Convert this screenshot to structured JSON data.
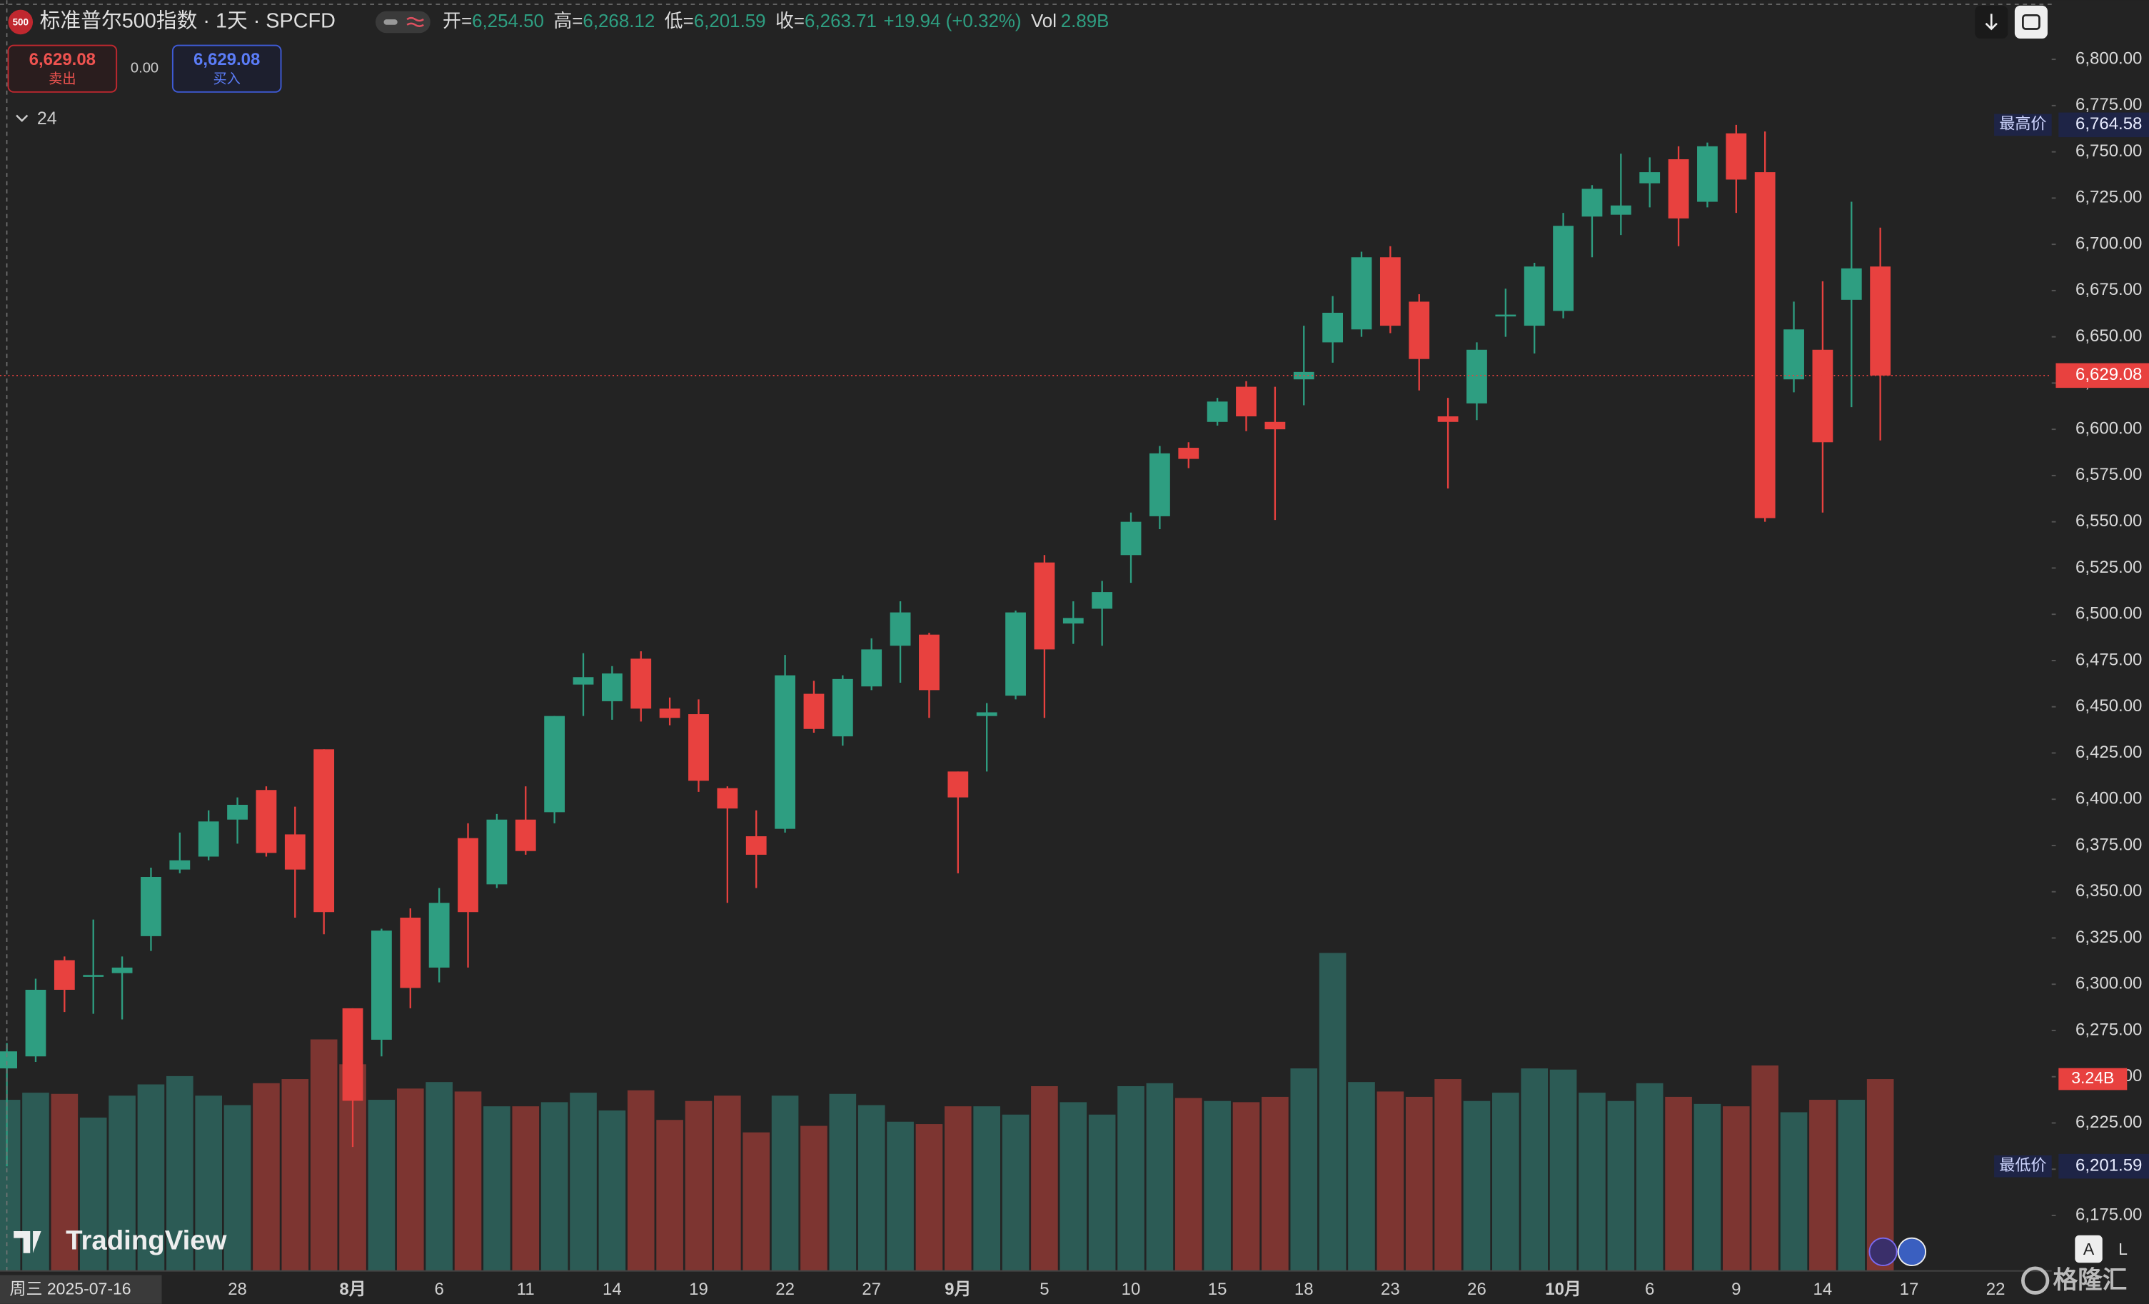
{
  "chart_data": {
    "type": "candlestick",
    "header": {
      "logo": "500",
      "title": "标准普尔500指数 · 1天 · SPCFD",
      "open_label": "开=",
      "open": "6,254.50",
      "high_label": "高=",
      "high": "6,268.12",
      "low_label": "低=",
      "low": "6,201.59",
      "close_label": "收=",
      "close": "6,263.71",
      "change": "+19.94 (+0.32%)",
      "vol_label": "Vol",
      "vol": "2.89B"
    },
    "trade": {
      "sell_price": "6,629.08",
      "sell_label": "卖出",
      "spread": "0.00",
      "buy_price": "6,629.08",
      "buy_label": "买入"
    },
    "indicator_toggle": "24",
    "categories": [
      null,
      null,
      null,
      null,
      null,
      null,
      null,
      null,
      "28",
      null,
      null,
      null,
      "8月",
      null,
      null,
      "6",
      null,
      null,
      "11",
      null,
      null,
      "14",
      null,
      null,
      "19",
      null,
      null,
      "22",
      null,
      null,
      "27",
      null,
      null,
      "9月",
      null,
      null,
      "5",
      null,
      null,
      "10",
      null,
      null,
      "15",
      null,
      null,
      "18",
      null,
      null,
      "23",
      null,
      null,
      "26",
      null,
      null,
      "10月",
      null,
      null,
      "6",
      null,
      null,
      "9",
      null,
      null,
      "14",
      null,
      null,
      "17",
      null,
      null,
      "22"
    ],
    "open": [
      6254.5,
      6261,
      6313,
      6304,
      6306,
      6326,
      6362,
      6369,
      6389,
      6405,
      6381,
      6427,
      6287,
      6270,
      6336,
      6309,
      6379,
      6354,
      6389,
      6393,
      6462,
      6453,
      6476,
      6449,
      6446,
      6406,
      6380,
      6384,
      6457,
      6434,
      6461,
      6483,
      6489,
      6415,
      6445,
      6456,
      6528,
      6495,
      6503,
      6532,
      6553,
      6590,
      6604,
      6623,
      6604,
      6627,
      6647,
      6654,
      6693,
      6669,
      6607,
      6614,
      6661,
      6656,
      6664,
      6715,
      6716,
      6733,
      6746,
      6723,
      6760,
      6739,
      6627,
      6643,
      6670,
      6688,
      null,
      null,
      null,
      null
    ],
    "high": [
      6268.12,
      6303,
      6315,
      6335,
      6315,
      6363,
      6382,
      6394,
      6401,
      6407,
      6396,
      6427,
      6287,
      6330,
      6341,
      6352,
      6387,
      6392,
      6407,
      6445,
      6479,
      6472,
      6480,
      6455,
      6454,
      6407,
      6394,
      6478,
      6464,
      6467,
      6487,
      6507,
      6490,
      6415,
      6452,
      6502,
      6532,
      6507,
      6518,
      6555,
      6591,
      6593,
      6617,
      6626,
      6623,
      6656,
      6672,
      6696,
      6699,
      6673,
      6617,
      6647,
      6676,
      6690,
      6717,
      6732,
      6749,
      6747,
      6753,
      6755,
      6764.58,
      6761,
      6669,
      6680,
      6723,
      6709,
      null,
      null,
      null,
      null
    ],
    "low": [
      6201.59,
      6258,
      6285,
      6284,
      6281,
      6318,
      6360,
      6367,
      6376,
      6369,
      6336,
      6327,
      6212,
      6261,
      6287,
      6301,
      6309,
      6352,
      6370,
      6387,
      6445,
      6443,
      6442,
      6440,
      6404,
      6344,
      6352,
      6382,
      6436,
      6429,
      6459,
      6463,
      6444,
      6360,
      6415,
      6454,
      6444,
      6484,
      6483,
      6517,
      6546,
      6579,
      6602,
      6599,
      6551,
      6613,
      6636,
      6650,
      6652,
      6621,
      6568,
      6605,
      6650,
      6641,
      6660,
      6693,
      6705,
      6720,
      6699,
      6720,
      6717,
      6550,
      6620,
      6555,
      6612,
      6594,
      null,
      null,
      null,
      null
    ],
    "close": [
      6263.71,
      6297,
      6297,
      6305,
      6309,
      6358,
      6367,
      6388,
      6397,
      6371,
      6362,
      6339,
      6237,
      6329,
      6298,
      6344,
      6339,
      6389,
      6372,
      6445,
      6466,
      6468,
      6449,
      6444,
      6410,
      6395,
      6370,
      6467,
      6438,
      6465,
      6481,
      6501,
      6459,
      6401,
      6447,
      6501,
      6481,
      6498,
      6512,
      6550,
      6587,
      6584,
      6615,
      6607,
      6600,
      6631,
      6663,
      6693,
      6656,
      6638,
      6604,
      6643,
      6662,
      6688,
      6710,
      6730,
      6721,
      6739,
      6714,
      6753,
      6735,
      6552,
      6654,
      6593,
      6687,
      6629.08,
      null,
      null,
      null,
      null
    ],
    "up_color": "#2e9e81",
    "down_color": "#e8413f",
    "volume": {
      "values": [
        2.89,
        3.01,
        2.99,
        2.59,
        2.96,
        3.15,
        3.29,
        2.96,
        2.8,
        3.17,
        3.24,
        3.91,
        3.49,
        2.89,
        3.08,
        3.19,
        3.03,
        2.78,
        2.78,
        2.85,
        3.01,
        2.71,
        3.05,
        2.55,
        2.87,
        2.96,
        2.34,
        2.96,
        2.45,
        2.99,
        2.8,
        2.52,
        2.48,
        2.78,
        2.78,
        2.64,
        3.12,
        2.85,
        2.64,
        3.12,
        3.17,
        2.92,
        2.87,
        2.85,
        2.94,
        3.42,
        5.37,
        3.19,
        3.03,
        2.94,
        3.24,
        2.87,
        3.01,
        3.42,
        3.4,
        3.01,
        2.87,
        3.17,
        2.94,
        2.82,
        2.78,
        3.47,
        2.68,
        2.89,
        2.89,
        3.24,
        null,
        null,
        null,
        null
      ],
      "ylim": [
        0,
        10
      ],
      "up_color": "#2c5b55",
      "down_color": "#7d3531",
      "last_label": {
        "value": 3.24,
        "label": "3.24B"
      }
    },
    "ylim": [
      6145,
      6832
    ],
    "yticks": [
      {
        "value": 6175,
        "label": "6,175.00"
      },
      {
        "value": 6200,
        "label": "6,200.00"
      },
      {
        "value": 6225,
        "label": "6,225.00"
      },
      {
        "value": 6250,
        "label": "6,250.00"
      },
      {
        "value": 6275,
        "label": "6,275.00"
      },
      {
        "value": 6300,
        "label": "6,300.00"
      },
      {
        "value": 6325,
        "label": "6,325.00"
      },
      {
        "value": 6350,
        "label": "6,350.00"
      },
      {
        "value": 6375,
        "label": "6,375.00"
      },
      {
        "value": 6400,
        "label": "6,400.00"
      },
      {
        "value": 6425,
        "label": "6,425.00"
      },
      {
        "value": 6450,
        "label": "6,450.00"
      },
      {
        "value": 6475,
        "label": "6,475.00"
      },
      {
        "value": 6500,
        "label": "6,500.00"
      },
      {
        "value": 6525,
        "label": "6,525.00"
      },
      {
        "value": 6550,
        "label": "6,550.00"
      },
      {
        "value": 6575,
        "label": "6,575.00"
      },
      {
        "value": 6600,
        "label": "6,600.00"
      },
      {
        "value": 6625,
        "label": "6,625.00"
      },
      {
        "value": 6650,
        "label": "6,650.00"
      },
      {
        "value": 6675,
        "label": "6,675.00"
      },
      {
        "value": 6700,
        "label": "6,700.00"
      },
      {
        "value": 6725,
        "label": "6,725.00"
      },
      {
        "value": 6750,
        "label": "6,750.00"
      },
      {
        "value": 6775,
        "label": "6,775.00"
      },
      {
        "value": 6800,
        "label": "6,800.00"
      }
    ],
    "current_price": {
      "value": 6629.08,
      "label": "6,629.08"
    },
    "high_marker": {
      "title": "最高价",
      "value": 6764.58,
      "label": "6,764.58"
    },
    "low_marker": {
      "title": "最低价",
      "value": 6201.59,
      "label": "6,201.59"
    },
    "crosshair_date": "周三 2025-07-16",
    "brand": "TradingView",
    "watermark": "格隆汇",
    "scale_buttons": [
      "A",
      "L"
    ]
  }
}
